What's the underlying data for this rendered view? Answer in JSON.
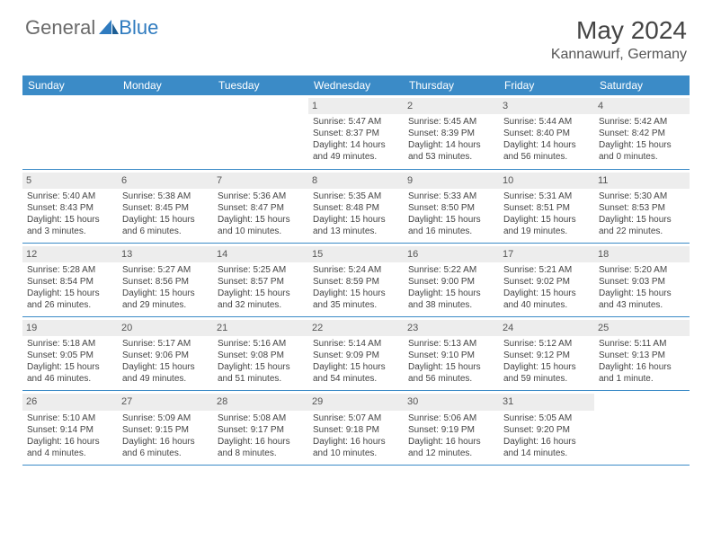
{
  "brand": {
    "part1": "General",
    "part2": "Blue"
  },
  "title": "May 2024",
  "location": "Kannawurf, Germany",
  "colors": {
    "header_bg": "#3b8bc7",
    "header_fg": "#ffffff",
    "daynum_bg": "#ededed",
    "text": "#444444",
    "rule": "#3b8bc7"
  },
  "days_of_week": [
    "Sunday",
    "Monday",
    "Tuesday",
    "Wednesday",
    "Thursday",
    "Friday",
    "Saturday"
  ],
  "weeks": [
    [
      null,
      null,
      null,
      {
        "n": "1",
        "sr": "5:47 AM",
        "ss": "8:37 PM",
        "dl": "14 hours and 49 minutes."
      },
      {
        "n": "2",
        "sr": "5:45 AM",
        "ss": "8:39 PM",
        "dl": "14 hours and 53 minutes."
      },
      {
        "n": "3",
        "sr": "5:44 AM",
        "ss": "8:40 PM",
        "dl": "14 hours and 56 minutes."
      },
      {
        "n": "4",
        "sr": "5:42 AM",
        "ss": "8:42 PM",
        "dl": "15 hours and 0 minutes."
      }
    ],
    [
      {
        "n": "5",
        "sr": "5:40 AM",
        "ss": "8:43 PM",
        "dl": "15 hours and 3 minutes."
      },
      {
        "n": "6",
        "sr": "5:38 AM",
        "ss": "8:45 PM",
        "dl": "15 hours and 6 minutes."
      },
      {
        "n": "7",
        "sr": "5:36 AM",
        "ss": "8:47 PM",
        "dl": "15 hours and 10 minutes."
      },
      {
        "n": "8",
        "sr": "5:35 AM",
        "ss": "8:48 PM",
        "dl": "15 hours and 13 minutes."
      },
      {
        "n": "9",
        "sr": "5:33 AM",
        "ss": "8:50 PM",
        "dl": "15 hours and 16 minutes."
      },
      {
        "n": "10",
        "sr": "5:31 AM",
        "ss": "8:51 PM",
        "dl": "15 hours and 19 minutes."
      },
      {
        "n": "11",
        "sr": "5:30 AM",
        "ss": "8:53 PM",
        "dl": "15 hours and 22 minutes."
      }
    ],
    [
      {
        "n": "12",
        "sr": "5:28 AM",
        "ss": "8:54 PM",
        "dl": "15 hours and 26 minutes."
      },
      {
        "n": "13",
        "sr": "5:27 AM",
        "ss": "8:56 PM",
        "dl": "15 hours and 29 minutes."
      },
      {
        "n": "14",
        "sr": "5:25 AM",
        "ss": "8:57 PM",
        "dl": "15 hours and 32 minutes."
      },
      {
        "n": "15",
        "sr": "5:24 AM",
        "ss": "8:59 PM",
        "dl": "15 hours and 35 minutes."
      },
      {
        "n": "16",
        "sr": "5:22 AM",
        "ss": "9:00 PM",
        "dl": "15 hours and 38 minutes."
      },
      {
        "n": "17",
        "sr": "5:21 AM",
        "ss": "9:02 PM",
        "dl": "15 hours and 40 minutes."
      },
      {
        "n": "18",
        "sr": "5:20 AM",
        "ss": "9:03 PM",
        "dl": "15 hours and 43 minutes."
      }
    ],
    [
      {
        "n": "19",
        "sr": "5:18 AM",
        "ss": "9:05 PM",
        "dl": "15 hours and 46 minutes."
      },
      {
        "n": "20",
        "sr": "5:17 AM",
        "ss": "9:06 PM",
        "dl": "15 hours and 49 minutes."
      },
      {
        "n": "21",
        "sr": "5:16 AM",
        "ss": "9:08 PM",
        "dl": "15 hours and 51 minutes."
      },
      {
        "n": "22",
        "sr": "5:14 AM",
        "ss": "9:09 PM",
        "dl": "15 hours and 54 minutes."
      },
      {
        "n": "23",
        "sr": "5:13 AM",
        "ss": "9:10 PM",
        "dl": "15 hours and 56 minutes."
      },
      {
        "n": "24",
        "sr": "5:12 AM",
        "ss": "9:12 PM",
        "dl": "15 hours and 59 minutes."
      },
      {
        "n": "25",
        "sr": "5:11 AM",
        "ss": "9:13 PM",
        "dl": "16 hours and 1 minute."
      }
    ],
    [
      {
        "n": "26",
        "sr": "5:10 AM",
        "ss": "9:14 PM",
        "dl": "16 hours and 4 minutes."
      },
      {
        "n": "27",
        "sr": "5:09 AM",
        "ss": "9:15 PM",
        "dl": "16 hours and 6 minutes."
      },
      {
        "n": "28",
        "sr": "5:08 AM",
        "ss": "9:17 PM",
        "dl": "16 hours and 8 minutes."
      },
      {
        "n": "29",
        "sr": "5:07 AM",
        "ss": "9:18 PM",
        "dl": "16 hours and 10 minutes."
      },
      {
        "n": "30",
        "sr": "5:06 AM",
        "ss": "9:19 PM",
        "dl": "16 hours and 12 minutes."
      },
      {
        "n": "31",
        "sr": "5:05 AM",
        "ss": "9:20 PM",
        "dl": "16 hours and 14 minutes."
      },
      null
    ]
  ],
  "labels": {
    "sunrise": "Sunrise:",
    "sunset": "Sunset:",
    "daylight": "Daylight:"
  }
}
